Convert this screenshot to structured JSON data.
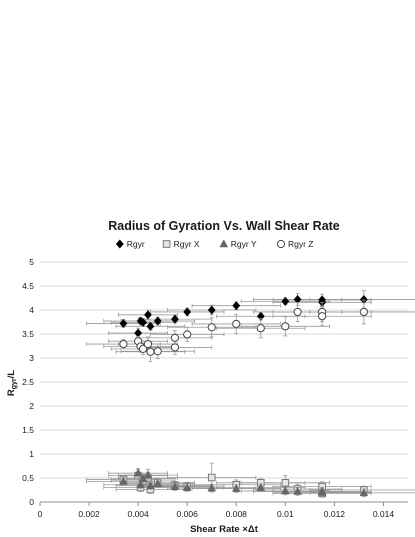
{
  "chart_data": {
    "type": "scatter",
    "title": "Radius of Gyration Vs. Wall Shear Rate",
    "xlabel": "Shear Rate ×Δt",
    "ylabel": {
      "main": "R",
      "sub": "gyr",
      "tail": "/L"
    },
    "xlim": [
      0,
      0.015
    ],
    "ylim": [
      0,
      5
    ],
    "x_ticks": [
      "0",
      "0.002",
      "0.004",
      "0.006",
      "0.008",
      "0.01",
      "0.012",
      "0.014"
    ],
    "y_ticks": [
      "0",
      "0.5",
      "1",
      "1.5",
      "2",
      "2.5",
      "3",
      "3.5",
      "4",
      "4.5",
      "5"
    ],
    "grid": "horizontal",
    "legend_position": "top",
    "error_bars": true,
    "series": [
      {
        "name": "Rgyr",
        "marker": "diamond-filled",
        "color": "#000000",
        "points": [
          {
            "x": 0.0034,
            "y": 3.72,
            "xerr": 0.0015,
            "yerr": 0.08
          },
          {
            "x": 0.004,
            "y": 3.52,
            "xerr": 0.0012,
            "yerr": 0.1
          },
          {
            "x": 0.0041,
            "y": 3.77,
            "xerr": 0.0015,
            "yerr": 0.07
          },
          {
            "x": 0.0042,
            "y": 3.74,
            "xerr": 0.0013,
            "yerr": 0.08
          },
          {
            "x": 0.0044,
            "y": 3.9,
            "xerr": 0.0012,
            "yerr": 0.1
          },
          {
            "x": 0.0045,
            "y": 3.66,
            "xerr": 0.0014,
            "yerr": 0.08
          },
          {
            "x": 0.0048,
            "y": 3.77,
            "xerr": 0.0015,
            "yerr": 0.08
          },
          {
            "x": 0.0055,
            "y": 3.81,
            "xerr": 0.0015,
            "yerr": 0.08
          },
          {
            "x": 0.006,
            "y": 3.96,
            "xerr": 0.0015,
            "yerr": 0.08
          },
          {
            "x": 0.007,
            "y": 4.0,
            "xerr": 0.0018,
            "yerr": 0.1
          },
          {
            "x": 0.008,
            "y": 4.09,
            "xerr": 0.0018,
            "yerr": 0.08
          },
          {
            "x": 0.009,
            "y": 3.87,
            "xerr": 0.0018,
            "yerr": 0.08
          },
          {
            "x": 0.01,
            "y": 4.18,
            "xerr": 0.0018,
            "yerr": 0.07
          },
          {
            "x": 0.0105,
            "y": 4.22,
            "xerr": 0.0018,
            "yerr": 0.12
          },
          {
            "x": 0.0115,
            "y": 4.21,
            "xerr": 0.002,
            "yerr": 0.12
          },
          {
            "x": 0.0115,
            "y": 4.16,
            "xerr": 0.002,
            "yerr": 0.1
          },
          {
            "x": 0.0132,
            "y": 4.22,
            "xerr": 0.0022,
            "yerr": 0.18
          }
        ]
      },
      {
        "name": "Rgyr X",
        "marker": "square-open",
        "color": "#777777",
        "points": [
          {
            "x": 0.0034,
            "y": 0.47,
            "xerr": 0.0015,
            "yerr": 0.08
          },
          {
            "x": 0.004,
            "y": 0.55,
            "xerr": 0.0012,
            "yerr": 0.12
          },
          {
            "x": 0.0041,
            "y": 0.3,
            "xerr": 0.0015,
            "yerr": 0.08
          },
          {
            "x": 0.0042,
            "y": 0.44,
            "xerr": 0.0013,
            "yerr": 0.12
          },
          {
            "x": 0.0044,
            "y": 0.5,
            "xerr": 0.0012,
            "yerr": 0.12
          },
          {
            "x": 0.0045,
            "y": 0.26,
            "xerr": 0.0014,
            "yerr": 0.08
          },
          {
            "x": 0.0048,
            "y": 0.4,
            "xerr": 0.0015,
            "yerr": 0.1
          },
          {
            "x": 0.0055,
            "y": 0.35,
            "xerr": 0.0015,
            "yerr": 0.08
          },
          {
            "x": 0.006,
            "y": 0.33,
            "xerr": 0.0015,
            "yerr": 0.08
          },
          {
            "x": 0.007,
            "y": 0.51,
            "xerr": 0.0018,
            "yerr": 0.3
          },
          {
            "x": 0.008,
            "y": 0.36,
            "xerr": 0.0018,
            "yerr": 0.1
          },
          {
            "x": 0.009,
            "y": 0.4,
            "xerr": 0.0018,
            "yerr": 0.1
          },
          {
            "x": 0.01,
            "y": 0.4,
            "xerr": 0.0018,
            "yerr": 0.15
          },
          {
            "x": 0.0105,
            "y": 0.27,
            "xerr": 0.0018,
            "yerr": 0.1
          },
          {
            "x": 0.0115,
            "y": 0.32,
            "xerr": 0.002,
            "yerr": 0.1
          },
          {
            "x": 0.0115,
            "y": 0.18,
            "xerr": 0.002,
            "yerr": 0.08
          },
          {
            "x": 0.0132,
            "y": 0.25,
            "xerr": 0.0022,
            "yerr": 0.08
          }
        ]
      },
      {
        "name": "Rgyr Y",
        "marker": "triangle-filled",
        "color": "#666666",
        "points": [
          {
            "x": 0.0034,
            "y": 0.43,
            "xerr": 0.0015,
            "yerr": 0.08
          },
          {
            "x": 0.004,
            "y": 0.6,
            "xerr": 0.0012,
            "yerr": 0.1
          },
          {
            "x": 0.0041,
            "y": 0.36,
            "xerr": 0.0015,
            "yerr": 0.08
          },
          {
            "x": 0.0042,
            "y": 0.48,
            "xerr": 0.0013,
            "yerr": 0.1
          },
          {
            "x": 0.0044,
            "y": 0.56,
            "xerr": 0.0012,
            "yerr": 0.12
          },
          {
            "x": 0.0045,
            "y": 0.34,
            "xerr": 0.0014,
            "yerr": 0.08
          },
          {
            "x": 0.0048,
            "y": 0.38,
            "xerr": 0.0015,
            "yerr": 0.08
          },
          {
            "x": 0.0055,
            "y": 0.32,
            "xerr": 0.0015,
            "yerr": 0.08
          },
          {
            "x": 0.006,
            "y": 0.3,
            "xerr": 0.0015,
            "yerr": 0.08
          },
          {
            "x": 0.007,
            "y": 0.29,
            "xerr": 0.0018,
            "yerr": 0.08
          },
          {
            "x": 0.008,
            "y": 0.28,
            "xerr": 0.0018,
            "yerr": 0.08
          },
          {
            "x": 0.009,
            "y": 0.3,
            "xerr": 0.0018,
            "yerr": 0.08
          },
          {
            "x": 0.01,
            "y": 0.23,
            "xerr": 0.0018,
            "yerr": 0.08
          },
          {
            "x": 0.0105,
            "y": 0.22,
            "xerr": 0.0018,
            "yerr": 0.08
          },
          {
            "x": 0.0115,
            "y": 0.22,
            "xerr": 0.002,
            "yerr": 0.08
          },
          {
            "x": 0.0115,
            "y": 0.2,
            "xerr": 0.002,
            "yerr": 0.08
          },
          {
            "x": 0.0132,
            "y": 0.19,
            "xerr": 0.0022,
            "yerr": 0.08
          }
        ]
      },
      {
        "name": "Rgyr Z",
        "marker": "circle-open",
        "color": "#444444",
        "points": [
          {
            "x": 0.0034,
            "y": 3.29,
            "xerr": 0.0015,
            "yerr": 0.1
          },
          {
            "x": 0.004,
            "y": 3.35,
            "xerr": 0.0012,
            "yerr": 0.1
          },
          {
            "x": 0.0041,
            "y": 3.24,
            "xerr": 0.0015,
            "yerr": 0.12
          },
          {
            "x": 0.0042,
            "y": 3.19,
            "xerr": 0.0013,
            "yerr": 0.12
          },
          {
            "x": 0.0044,
            "y": 3.29,
            "xerr": 0.0012,
            "yerr": 0.15
          },
          {
            "x": 0.0045,
            "y": 3.13,
            "xerr": 0.0014,
            "yerr": 0.2
          },
          {
            "x": 0.0048,
            "y": 3.14,
            "xerr": 0.0015,
            "yerr": 0.15
          },
          {
            "x": 0.0055,
            "y": 3.22,
            "xerr": 0.0015,
            "yerr": 0.15
          },
          {
            "x": 0.0055,
            "y": 3.42,
            "xerr": 0.0015,
            "yerr": 0.15
          },
          {
            "x": 0.006,
            "y": 3.49,
            "xerr": 0.0015,
            "yerr": 0.15
          },
          {
            "x": 0.007,
            "y": 3.64,
            "xerr": 0.0018,
            "yerr": 0.2
          },
          {
            "x": 0.008,
            "y": 3.71,
            "xerr": 0.0018,
            "yerr": 0.2
          },
          {
            "x": 0.009,
            "y": 3.62,
            "xerr": 0.0018,
            "yerr": 0.2
          },
          {
            "x": 0.01,
            "y": 3.66,
            "xerr": 0.0018,
            "yerr": 0.2
          },
          {
            "x": 0.0105,
            "y": 3.96,
            "xerr": 0.0018,
            "yerr": 0.2
          },
          {
            "x": 0.0115,
            "y": 3.96,
            "xerr": 0.002,
            "yerr": 0.2
          },
          {
            "x": 0.0115,
            "y": 3.87,
            "xerr": 0.002,
            "yerr": 0.2
          },
          {
            "x": 0.0132,
            "y": 3.96,
            "xerr": 0.0022,
            "yerr": 0.25
          }
        ]
      }
    ]
  }
}
